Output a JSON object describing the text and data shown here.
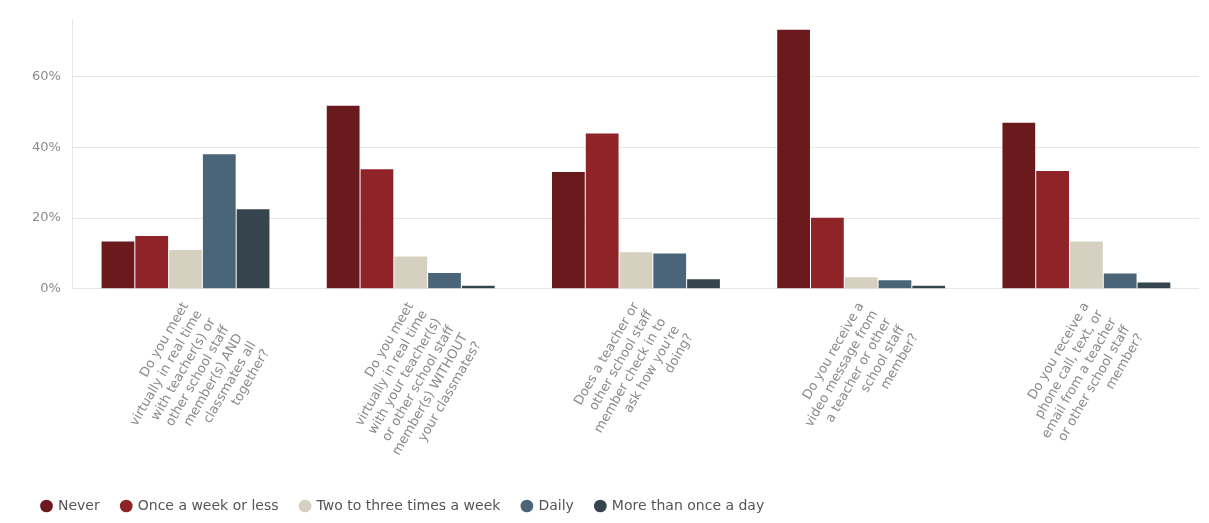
{
  "chart_data": {
    "type": "bar",
    "categories": [
      "Do you meet virtually in real time with teacher(s) or other school staff member(s) AND classmates all together?",
      "Do you meet virtually in real time with your teacher(s) or other school staff member(s) WITHOUT your classmates?",
      "Does a teacher or other school staff member check in to ask how you're doing?",
      "Do you receive a video message from a teacher or other school staff member?",
      "Do you receive a phone call, text, or email from a teacher or other school staff member?"
    ],
    "series": [
      {
        "name": "Never",
        "color": "#6a191d",
        "values": [
          13.4,
          51.7,
          33.0,
          73.2,
          46.9
        ]
      },
      {
        "name": "Once a week or less",
        "color": "#8f2428",
        "values": [
          14.9,
          33.8,
          43.9,
          20.1,
          33.3
        ]
      },
      {
        "name": "Two to three times a week",
        "color": "#d6d0c0",
        "values": [
          11.0,
          9.1,
          10.3,
          3.3,
          13.4
        ]
      },
      {
        "name": "Daily",
        "color": "#4a6478",
        "values": [
          38.0,
          4.5,
          10.0,
          2.4,
          4.3
        ]
      },
      {
        "name": "More than once a day",
        "color": "#36454d",
        "values": [
          22.5,
          0.9,
          2.7,
          0.9,
          1.8
        ]
      }
    ],
    "ylim": [
      0,
      76
    ],
    "yticks": [
      {
        "value": 0,
        "label": "0%"
      },
      {
        "value": 20,
        "label": "20%"
      },
      {
        "value": 40,
        "label": "40%"
      },
      {
        "value": 60,
        "label": "60%"
      }
    ],
    "grid": "y",
    "legend": "bottom left"
  }
}
